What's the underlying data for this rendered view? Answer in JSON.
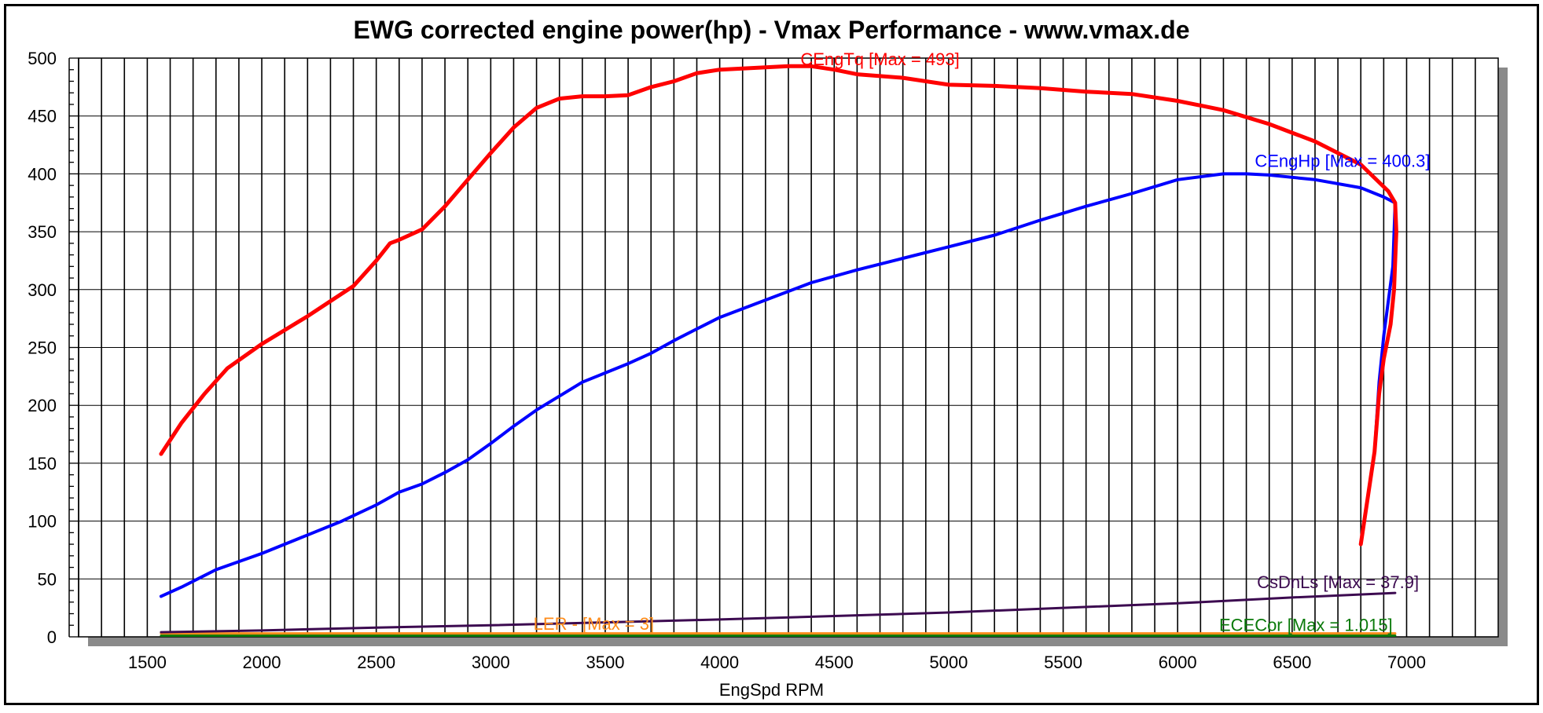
{
  "chart_data": {
    "type": "line",
    "title": "EWG corrected engine power(hp) - Vmax Performance - www.vmax.de",
    "xlabel": "EngSpd RPM",
    "ylabel": "",
    "xlim": [
      1200,
      7400
    ],
    "ylim": [
      0,
      500
    ],
    "x_ticks": [
      1500,
      2000,
      2500,
      3000,
      3500,
      4000,
      4500,
      5000,
      5500,
      6000,
      6500,
      7000
    ],
    "y_ticks": [
      0,
      50,
      100,
      150,
      200,
      250,
      300,
      350,
      400,
      450,
      500
    ],
    "x_gridline_step": 100,
    "grid": true,
    "legend": "inline labels",
    "series": [
      {
        "name": "CEngTq",
        "label": "CEngTq [Max = 493]",
        "color": "#ff0000",
        "x": [
          1560,
          1650,
          1750,
          1850,
          2000,
          2100,
          2200,
          2300,
          2400,
          2500,
          2560,
          2600,
          2700,
          2800,
          2900,
          3000,
          3100,
          3200,
          3300,
          3400,
          3500,
          3600,
          3700,
          3800,
          3900,
          4000,
          4100,
          4200,
          4300,
          4400,
          4500,
          4600,
          4800,
          5000,
          5200,
          5400,
          5600,
          5800,
          6000,
          6200,
          6400,
          6600,
          6800,
          6920,
          6950,
          6955,
          6945,
          6930,
          6900,
          6880,
          6860,
          6830,
          6800
        ],
        "values": [
          158,
          185,
          210,
          232,
          253,
          265,
          277,
          290,
          303,
          325,
          340,
          343,
          352,
          372,
          395,
          418,
          440,
          457,
          465,
          467,
          467,
          468,
          475,
          480,
          487,
          490,
          491,
          492,
          493,
          493,
          490,
          486,
          483,
          477,
          476,
          474,
          471,
          469,
          463,
          455,
          443,
          428,
          408,
          385,
          375,
          350,
          300,
          270,
          240,
          210,
          160,
          120,
          80
        ]
      },
      {
        "name": "CEngHp",
        "label": "CEngHp [Max = 400.3]",
        "color": "#0000ff",
        "x": [
          1560,
          1650,
          1800,
          2000,
          2200,
          2350,
          2500,
          2600,
          2700,
          2800,
          2900,
          3000,
          3100,
          3200,
          3300,
          3400,
          3500,
          3600,
          3700,
          3800,
          3900,
          4000,
          4200,
          4400,
          4600,
          4800,
          5000,
          5200,
          5400,
          5600,
          5800,
          6000,
          6200,
          6300,
          6400,
          6600,
          6800,
          6900,
          6950,
          6940,
          6920,
          6900,
          6880,
          6860,
          6830,
          6800
        ],
        "values": [
          35,
          43,
          58,
          72,
          88,
          100,
          114,
          125,
          132,
          142,
          153,
          167,
          182,
          196,
          208,
          220,
          228,
          236,
          245,
          256,
          266,
          276,
          291,
          306,
          317,
          327,
          337,
          347,
          360,
          372,
          383,
          395,
          400,
          400,
          399,
          395,
          388,
          380,
          375,
          320,
          290,
          260,
          220,
          160,
          120,
          80
        ]
      },
      {
        "name": "CsDnLs",
        "label": "CsDnLs [Max = 37.9]",
        "color": "#3c0a50",
        "x": [
          1560,
          2000,
          2500,
          3000,
          3500,
          4000,
          4500,
          5000,
          5500,
          6000,
          6500,
          6950
        ],
        "values": [
          4,
          5.5,
          8,
          10,
          12.5,
          15,
          18,
          21,
          25,
          29,
          34,
          37.9
        ]
      },
      {
        "name": "LER",
        "label": "LER - [Max = 3]",
        "color": "#ff8c1a",
        "x": [
          1560,
          6950
        ],
        "values": [
          3,
          3
        ]
      },
      {
        "name": "ECECor",
        "label": "ECECor [Max = 1.015]",
        "color": "#0a7a0a",
        "x": [
          1560,
          6950
        ],
        "values": [
          1.015,
          1.015
        ]
      }
    ]
  }
}
